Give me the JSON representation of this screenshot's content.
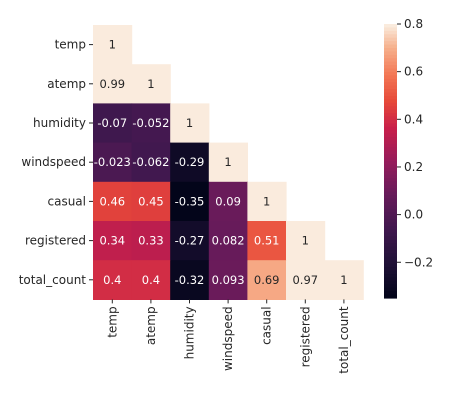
{
  "chart_data": {
    "type": "heatmap",
    "title": "",
    "xlabel": "",
    "ylabel": "",
    "variables": [
      "temp",
      "atemp",
      "humidity",
      "windspeed",
      "casual",
      "registered",
      "total_count"
    ],
    "matrix_lower_triangle": [
      [
        1
      ],
      [
        0.99,
        1
      ],
      [
        -0.07,
        -0.052,
        1
      ],
      [
        -0.023,
        -0.062,
        -0.29,
        1
      ],
      [
        0.46,
        0.45,
        -0.35,
        0.09,
        1
      ],
      [
        0.34,
        0.33,
        -0.27,
        0.082,
        0.51,
        1
      ],
      [
        0.4,
        0.4,
        -0.32,
        0.093,
        0.69,
        0.97,
        1
      ]
    ],
    "cell_labels": [
      [
        "1"
      ],
      [
        "0.99",
        "1"
      ],
      [
        "-0.07",
        "-0.052",
        "1"
      ],
      [
        "-0.023",
        "-0.062",
        "-0.29",
        "1"
      ],
      [
        "0.46",
        "0.45",
        "-0.35",
        "0.09",
        "1"
      ],
      [
        "0.34",
        "0.33",
        "-0.27",
        "0.082",
        "0.51",
        "1"
      ],
      [
        "0.4",
        "0.4",
        "-0.32",
        "0.093",
        "0.69",
        "0.97",
        "1"
      ]
    ],
    "upper_triangle_masked": true,
    "colormap": "rocket",
    "color_range": [
      -0.35,
      0.8
    ],
    "colorbar": {
      "ticks": [
        0.8,
        0.6,
        0.4,
        0.2,
        0.0,
        -0.2
      ],
      "tick_labels": [
        "0.8",
        "0.6",
        "0.4",
        "0.2",
        "0.0",
        "−0.2"
      ]
    },
    "grid": false,
    "legend": "colorbar-right"
  }
}
